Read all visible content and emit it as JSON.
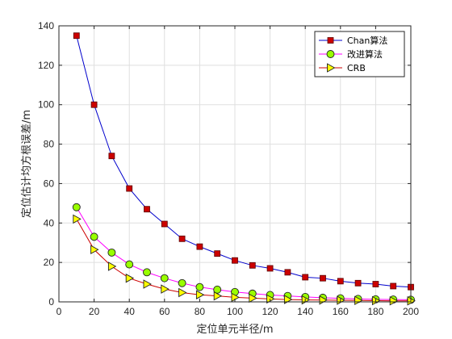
{
  "chart_data": {
    "type": "line",
    "xlabel": "定位单元半径/m",
    "ylabel": "定位估计均方根误差/m",
    "xlim": [
      0,
      200
    ],
    "ylim": [
      0,
      140
    ],
    "x_ticks": [
      0,
      20,
      40,
      60,
      80,
      100,
      120,
      140,
      160,
      180,
      200
    ],
    "y_ticks": [
      0,
      20,
      40,
      60,
      80,
      100,
      120,
      140
    ],
    "grid": true,
    "legend_position": "top-right",
    "x": [
      10,
      20,
      30,
      40,
      50,
      60,
      70,
      80,
      90,
      100,
      110,
      120,
      130,
      140,
      150,
      160,
      170,
      180,
      190,
      200
    ],
    "series": [
      {
        "name": "Chan算法",
        "color": "#0000cc",
        "marker": "square",
        "marker_fill": "#cc0000",
        "values": [
          135,
          100,
          74,
          57.5,
          47,
          39.5,
          32,
          28,
          24.5,
          21,
          18.5,
          17,
          15,
          12.5,
          12,
          10.5,
          9.5,
          9,
          8,
          7.5
        ]
      },
      {
        "name": "改进算法",
        "color": "#ff00ff",
        "marker": "circle",
        "marker_fill": "#99ff00",
        "values": [
          48,
          33,
          25,
          19,
          15,
          12,
          9.5,
          7.5,
          6.2,
          5,
          4.2,
          3.5,
          3,
          2.5,
          2.1,
          1.8,
          1.5,
          1.3,
          1.2,
          1.1
        ]
      },
      {
        "name": "CRB",
        "color": "#cc0000",
        "marker": "triangle-right",
        "marker_fill": "#ffff00",
        "values": [
          42,
          26.5,
          18,
          12,
          9,
          6.5,
          4.7,
          3.6,
          3,
          2.3,
          1.9,
          1.5,
          1.2,
          1,
          0.9,
          0.8,
          0.7,
          0.6,
          0.5,
          0.5
        ]
      }
    ]
  }
}
